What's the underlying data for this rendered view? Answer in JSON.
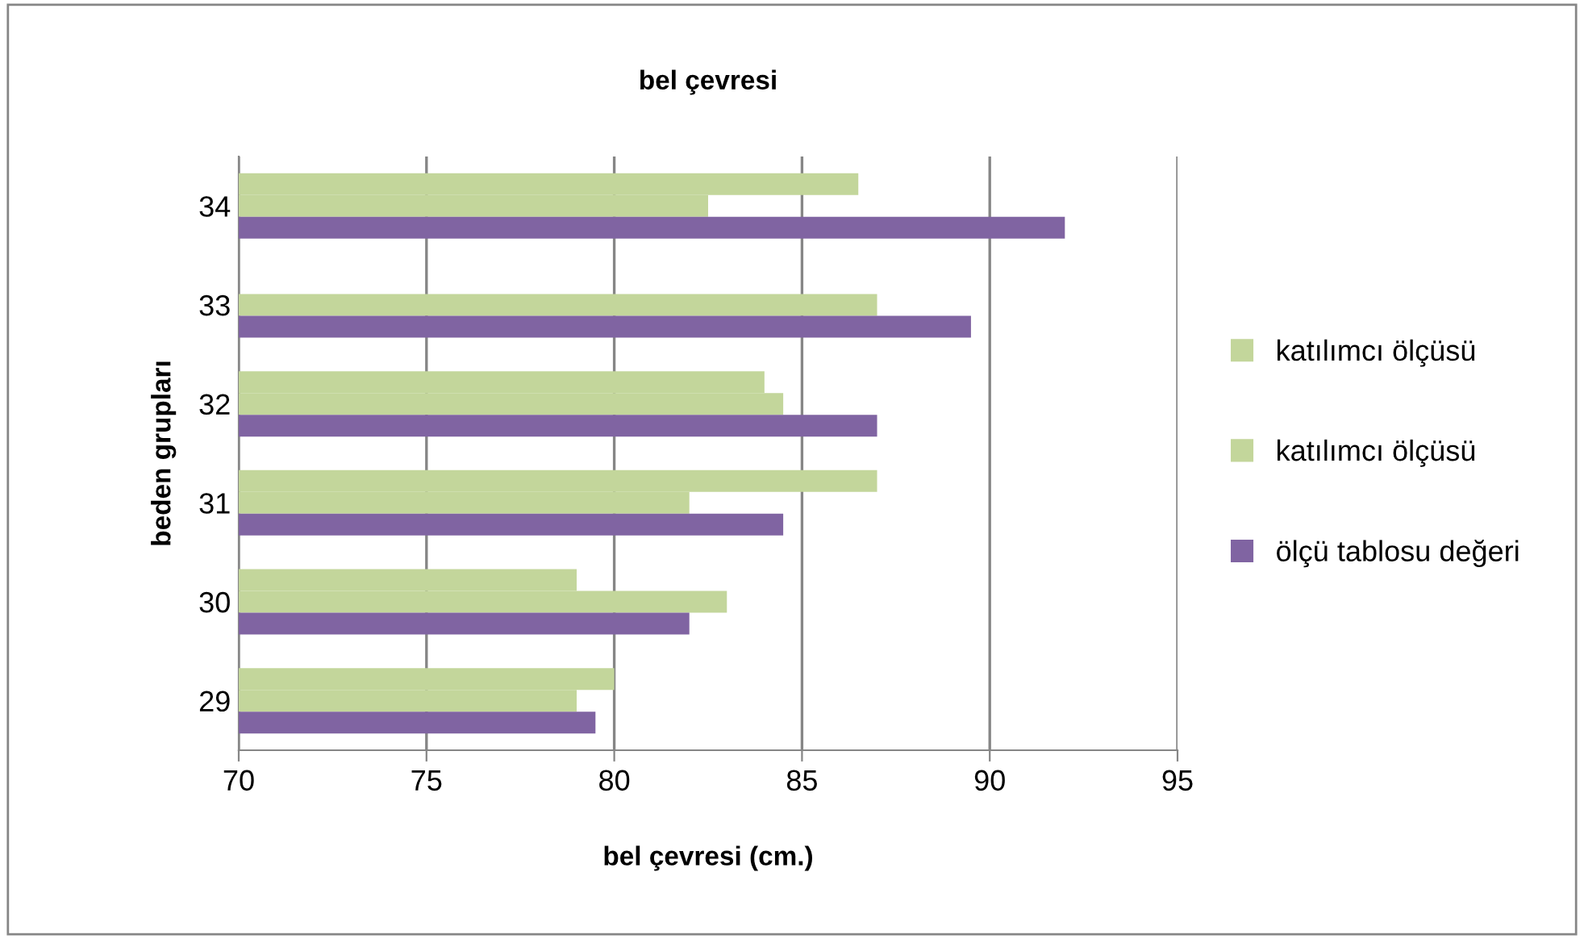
{
  "chart_data": {
    "type": "bar",
    "orientation": "horizontal",
    "title": "bel çevresi",
    "xlabel": "bel çevresi (cm.)",
    "ylabel": "beden grupları",
    "categories": [
      "34",
      "33",
      "32",
      "31",
      "30",
      "29"
    ],
    "series": [
      {
        "name": "katılımcı ölçüsü",
        "color": "#c3d69b",
        "values": [
          86.5,
          null,
          84.0,
          87.0,
          79.0,
          80.0
        ]
      },
      {
        "name": "katılımcı ölçüsü",
        "color": "#c3d69b",
        "values": [
          82.5,
          87.0,
          84.5,
          82.0,
          83.0,
          79.0
        ]
      },
      {
        "name": "ölçü tablosu değeri",
        "color": "#8064a2",
        "values": [
          92.0,
          89.5,
          87.0,
          84.5,
          82.0,
          79.5
        ]
      }
    ],
    "xlim": [
      70,
      95
    ],
    "xticks": [
      70,
      75,
      80,
      85,
      90,
      95
    ],
    "grid": "x",
    "legend": "right"
  }
}
